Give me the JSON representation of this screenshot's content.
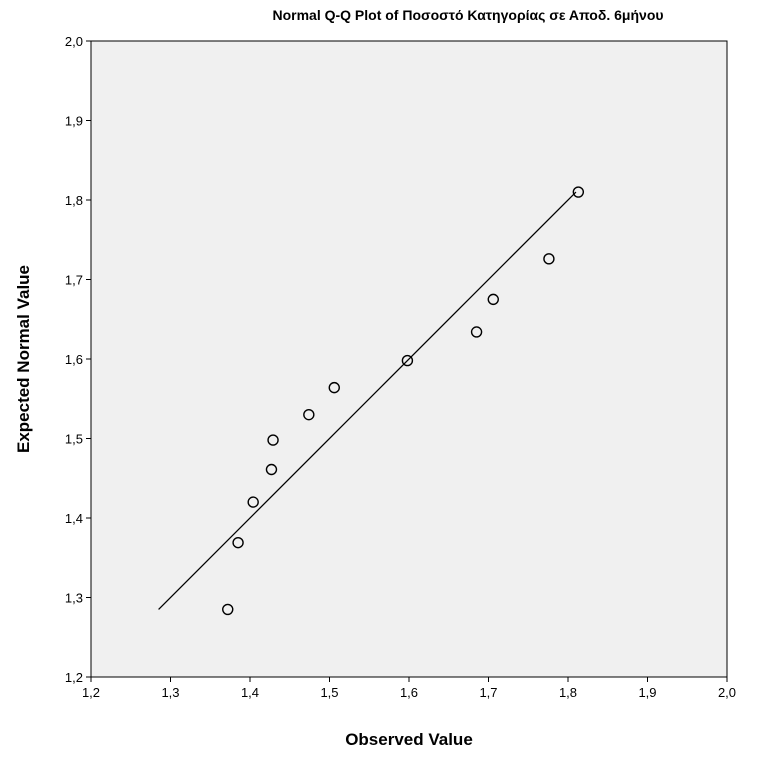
{
  "chart_data": {
    "type": "scatter",
    "title": "Normal Q-Q Plot of Ποσοστό Κατηγορίας σε Αποδ. 6μήνου",
    "xlabel": "Observed Value",
    "ylabel": "Expected Normal Value",
    "xlim": [
      1.2,
      2.0
    ],
    "ylim": [
      1.2,
      2.0
    ],
    "x_ticks": [
      "1,2",
      "1,3",
      "1,4",
      "1,5",
      "1,6",
      "1,7",
      "1,8",
      "1,9",
      "2,0"
    ],
    "y_ticks": [
      "1,2",
      "1,3",
      "1,4",
      "1,5",
      "1,6",
      "1,7",
      "1,8",
      "1,9",
      "2,0"
    ],
    "grid": false,
    "plot_background": "#f0f0f0",
    "reference_line": {
      "from": [
        1.285,
        1.285
      ],
      "to": [
        1.81,
        1.81
      ]
    },
    "points": [
      {
        "x": 1.372,
        "y": 1.285
      },
      {
        "x": 1.385,
        "y": 1.369
      },
      {
        "x": 1.404,
        "y": 1.42
      },
      {
        "x": 1.427,
        "y": 1.461
      },
      {
        "x": 1.429,
        "y": 1.498
      },
      {
        "x": 1.474,
        "y": 1.53
      },
      {
        "x": 1.506,
        "y": 1.564
      },
      {
        "x": 1.598,
        "y": 1.598
      },
      {
        "x": 1.685,
        "y": 1.634
      },
      {
        "x": 1.706,
        "y": 1.675
      },
      {
        "x": 1.776,
        "y": 1.726
      },
      {
        "x": 1.813,
        "y": 1.81
      }
    ]
  }
}
